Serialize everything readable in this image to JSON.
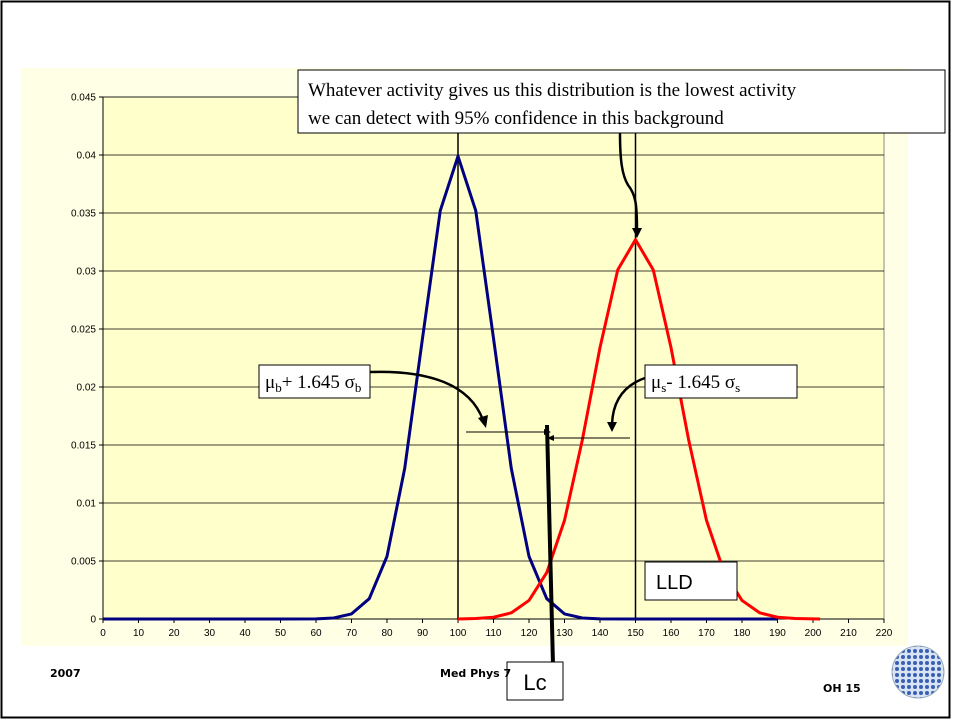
{
  "chart_data": {
    "type": "line",
    "xlim": [
      0,
      220
    ],
    "xticks": [
      0,
      10,
      20,
      30,
      40,
      50,
      60,
      70,
      80,
      90,
      100,
      110,
      120,
      130,
      140,
      150,
      160,
      170,
      180,
      190,
      200,
      210,
      220
    ],
    "ylim": [
      0,
      0.045
    ],
    "yticks": [
      0,
      0.005,
      0.01,
      0.015,
      0.02,
      0.025,
      0.03,
      0.035,
      0.04,
      0.045
    ],
    "grid": true,
    "series": [
      {
        "color": "#000080",
        "x": [
          0,
          50,
          60,
          65,
          70,
          75,
          80,
          85,
          90,
          95,
          100,
          105,
          110,
          115,
          120,
          125,
          130,
          135,
          140,
          150,
          190
        ],
        "values": [
          0,
          0,
          1e-05,
          9e-05,
          0.00044,
          0.00175,
          0.0054,
          0.013,
          0.0242,
          0.0352,
          0.0399,
          0.0352,
          0.0242,
          0.013,
          0.0054,
          0.00175,
          0.00044,
          9e-05,
          1e-05,
          0,
          0
        ]
      },
      {
        "color": "#ff0000",
        "x": [
          100,
          105,
          110,
          115,
          120,
          125,
          130,
          135,
          140,
          145,
          150,
          155,
          160,
          165,
          170,
          175,
          180,
          185,
          190,
          195,
          202
        ],
        "values": [
          0,
          4e-05,
          0.00015,
          0.00053,
          0.0016,
          0.004,
          0.0085,
          0.0154,
          0.0234,
          0.0301,
          0.0327,
          0.0301,
          0.0234,
          0.0154,
          0.0085,
          0.004,
          0.0016,
          0.00053,
          0.00015,
          4e-05,
          0
        ]
      }
    ],
    "vlines": [
      100,
      150
    ],
    "annotations": {
      "main": [
        "Whatever activity gives us this distribution is the lowest activity",
        "we can detect with 95% confidence in this background"
      ],
      "background": [
        "μ",
        "b",
        "+ 1.645 σ",
        "b"
      ],
      "signal": [
        "μ",
        "s",
        "- 1.645 σ",
        "s"
      ],
      "lc": "Lc",
      "lld": "LLD"
    }
  },
  "footer": {
    "year": "2007",
    "course": "Med Phys 7",
    "page": "OH 15"
  }
}
